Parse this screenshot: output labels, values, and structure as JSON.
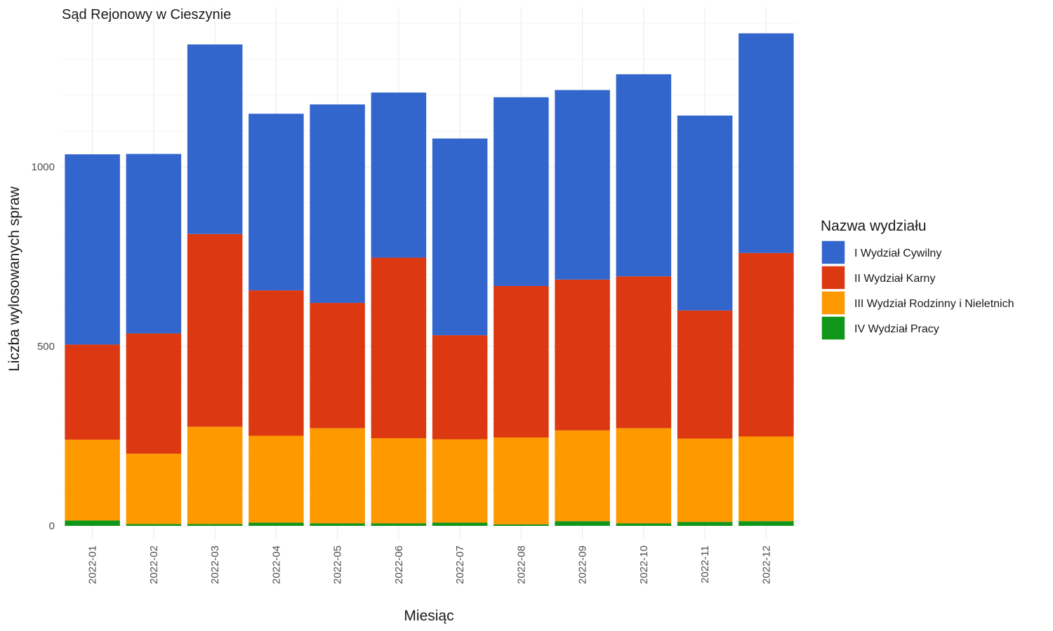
{
  "chart_data": {
    "type": "bar",
    "stacked": true,
    "title": "Sąd Rejonowy w Cieszynie",
    "xlabel": "Miesiąc",
    "ylabel": "Liczba wylosowanych spraw",
    "ylim": [
      0,
      1400
    ],
    "yticks": [
      0,
      500,
      1000
    ],
    "grid": true,
    "legend_position": "right",
    "legend_title": "Nazwa wydziału",
    "categories": [
      "2022-01",
      "2022-02",
      "2022-03",
      "2022-04",
      "2022-05",
      "2022-06",
      "2022-07",
      "2022-08",
      "2022-09",
      "2022-10",
      "2022-11",
      "2022-12"
    ],
    "series": [
      {
        "name": "IV Wydział Pracy",
        "color": "#109618",
        "values": [
          15,
          5,
          5,
          9,
          7,
          7,
          9,
          4,
          13,
          7,
          11,
          13
        ]
      },
      {
        "name": "III Wydział Rodzinny i Nieletnich",
        "color": "#FF9900",
        "values": [
          225,
          196,
          271,
          242,
          265,
          237,
          232,
          242,
          253,
          265,
          232,
          236
        ]
      },
      {
        "name": "II Wydział Karny",
        "color": "#DC3912",
        "values": [
          265,
          335,
          537,
          405,
          349,
          503,
          290,
          422,
          420,
          423,
          357,
          511
        ]
      },
      {
        "name": "I Wydział Cywilny",
        "color": "#3366CC",
        "values": [
          530,
          500,
          528,
          492,
          553,
          460,
          548,
          526,
          528,
          563,
          543,
          612
        ]
      }
    ]
  }
}
